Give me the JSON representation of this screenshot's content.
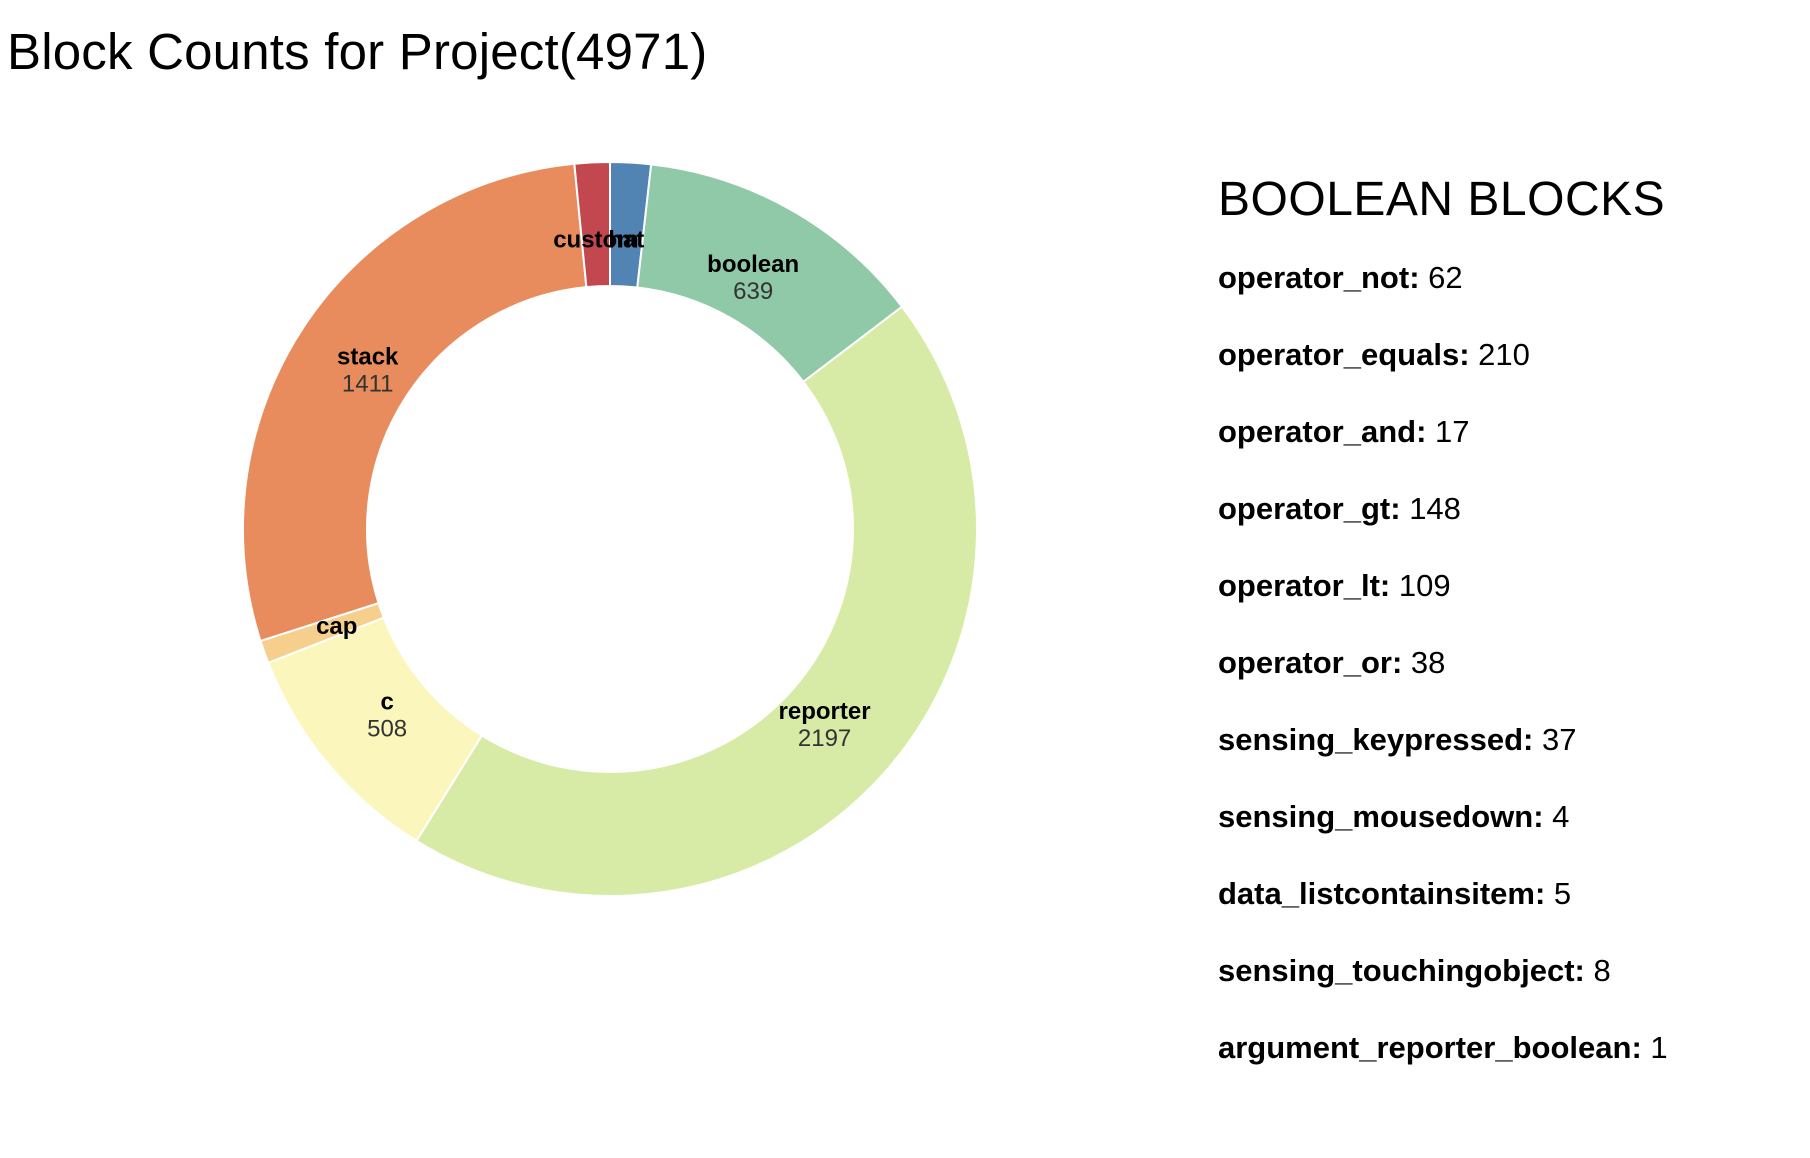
{
  "title": "Block Counts for Project(4971)",
  "chart_data": {
    "type": "pie",
    "donut": true,
    "total": 4971,
    "slices": [
      {
        "name": "hat",
        "value": 89,
        "color": "#5184b2",
        "show_value": false
      },
      {
        "name": "boolean",
        "value": 639,
        "color": "#8fc9a8",
        "show_value": true
      },
      {
        "name": "reporter",
        "value": 2197,
        "color": "#d8eba6",
        "show_value": true
      },
      {
        "name": "c",
        "value": 508,
        "color": "#fbf7bc",
        "show_value": true
      },
      {
        "name": "cap",
        "value": 50,
        "color": "#f7cf8d",
        "show_value": false
      },
      {
        "name": "stack",
        "value": 1411,
        "color": "#e88b5d",
        "show_value": true
      },
      {
        "name": "custom",
        "value": 77,
        "color": "#c3474f",
        "show_value": false
      }
    ]
  },
  "detail": {
    "heading": "BOOLEAN BLOCKS",
    "items": [
      {
        "name": "operator_not",
        "value": "62"
      },
      {
        "name": "operator_equals",
        "value": "210"
      },
      {
        "name": "operator_and",
        "value": "17"
      },
      {
        "name": "operator_gt",
        "value": "148"
      },
      {
        "name": "operator_lt",
        "value": "109"
      },
      {
        "name": "operator_or",
        "value": "38"
      },
      {
        "name": "sensing_keypressed",
        "value": "37"
      },
      {
        "name": "sensing_mousedown",
        "value": "4"
      },
      {
        "name": "data_listcontainsitem",
        "value": "5"
      },
      {
        "name": "sensing_touchingobject",
        "value": "8"
      },
      {
        "name": "argument_reporter_boolean",
        "value": "1"
      }
    ]
  }
}
